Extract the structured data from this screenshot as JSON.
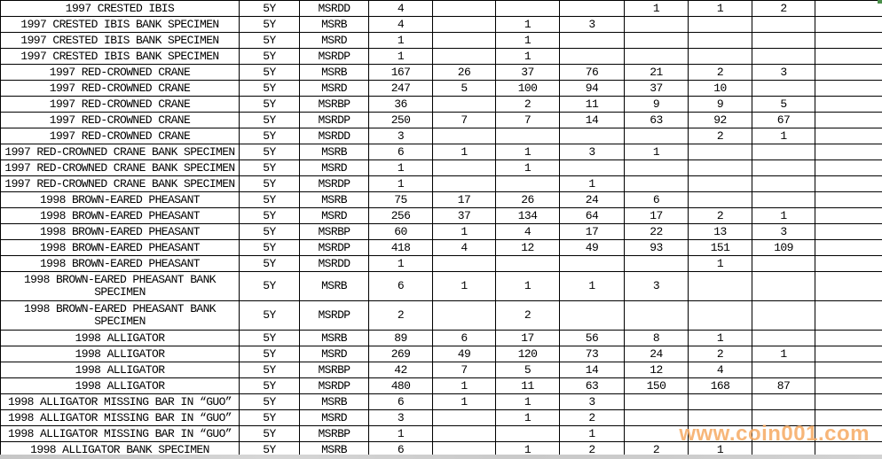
{
  "watermark": {
    "text": "www.coin001.com"
  },
  "colors": {
    "watermark": "#F6AC67",
    "grid": "#000000",
    "background": "#FFFFFF",
    "bottom_strip": "#CCCCCC",
    "corner_mark": "#4A8F4A"
  },
  "table": {
    "rows": [
      {
        "name": "1997 CRESTED IBIS",
        "denomination": "5Y",
        "grade": "MSRDD",
        "tall": false,
        "values": [
          "4",
          "",
          "",
          "",
          "1",
          "1",
          "2",
          ""
        ]
      },
      {
        "name": "1997 CRESTED IBIS BANK SPECIMEN",
        "denomination": "5Y",
        "grade": "MSRB",
        "tall": false,
        "values": [
          "4",
          "",
          "1",
          "3",
          "",
          "",
          "",
          ""
        ]
      },
      {
        "name": "1997 CRESTED IBIS BANK SPECIMEN",
        "denomination": "5Y",
        "grade": "MSRD",
        "tall": false,
        "values": [
          "1",
          "",
          "1",
          "",
          "",
          "",
          "",
          ""
        ]
      },
      {
        "name": "1997 CRESTED IBIS BANK SPECIMEN",
        "denomination": "5Y",
        "grade": "MSRDP",
        "tall": false,
        "values": [
          "1",
          "",
          "1",
          "",
          "",
          "",
          "",
          ""
        ]
      },
      {
        "name": "1997 RED-CROWNED CRANE",
        "denomination": "5Y",
        "grade": "MSRB",
        "tall": false,
        "values": [
          "167",
          "26",
          "37",
          "76",
          "21",
          "2",
          "3",
          ""
        ]
      },
      {
        "name": "1997 RED-CROWNED CRANE",
        "denomination": "5Y",
        "grade": "MSRD",
        "tall": false,
        "values": [
          "247",
          "5",
          "100",
          "94",
          "37",
          "10",
          "",
          ""
        ]
      },
      {
        "name": "1997 RED-CROWNED CRANE",
        "denomination": "5Y",
        "grade": "MSRBP",
        "tall": false,
        "values": [
          "36",
          "",
          "2",
          "11",
          "9",
          "9",
          "5",
          ""
        ]
      },
      {
        "name": "1997 RED-CROWNED CRANE",
        "denomination": "5Y",
        "grade": "MSRDP",
        "tall": false,
        "values": [
          "250",
          "7",
          "7",
          "14",
          "63",
          "92",
          "67",
          ""
        ]
      },
      {
        "name": "1997 RED-CROWNED CRANE",
        "denomination": "5Y",
        "grade": "MSRDD",
        "tall": false,
        "values": [
          "3",
          "",
          "",
          "",
          "",
          "2",
          "1",
          ""
        ]
      },
      {
        "name": "1997 RED-CROWNED CRANE BANK SPECIMEN",
        "denomination": "5Y",
        "grade": "MSRB",
        "tall": false,
        "values": [
          "6",
          "1",
          "1",
          "3",
          "1",
          "",
          "",
          ""
        ]
      },
      {
        "name": "1997 RED-CROWNED CRANE BANK SPECIMEN",
        "denomination": "5Y",
        "grade": "MSRD",
        "tall": false,
        "values": [
          "1",
          "",
          "1",
          "",
          "",
          "",
          "",
          ""
        ]
      },
      {
        "name": "1997 RED-CROWNED CRANE BANK SPECIMEN",
        "denomination": "5Y",
        "grade": "MSRDP",
        "tall": false,
        "values": [
          "1",
          "",
          "",
          "1",
          "",
          "",
          "",
          ""
        ]
      },
      {
        "name": "1998 BROWN-EARED PHEASANT",
        "denomination": "5Y",
        "grade": "MSRB",
        "tall": false,
        "values": [
          "75",
          "17",
          "26",
          "24",
          "6",
          "",
          "",
          ""
        ]
      },
      {
        "name": "1998 BROWN-EARED PHEASANT",
        "denomination": "5Y",
        "grade": "MSRD",
        "tall": false,
        "values": [
          "256",
          "37",
          "134",
          "64",
          "17",
          "2",
          "1",
          ""
        ]
      },
      {
        "name": "1998 BROWN-EARED PHEASANT",
        "denomination": "5Y",
        "grade": "MSRBP",
        "tall": false,
        "values": [
          "60",
          "1",
          "4",
          "17",
          "22",
          "13",
          "3",
          ""
        ]
      },
      {
        "name": "1998 BROWN-EARED PHEASANT",
        "denomination": "5Y",
        "grade": "MSRDP",
        "tall": false,
        "values": [
          "418",
          "4",
          "12",
          "49",
          "93",
          "151",
          "109",
          ""
        ]
      },
      {
        "name": "1998 BROWN-EARED PHEASANT",
        "denomination": "5Y",
        "grade": "MSRDD",
        "tall": false,
        "values": [
          "1",
          "",
          "",
          "",
          "",
          "1",
          "",
          ""
        ]
      },
      {
        "name": "1998 BROWN-EARED PHEASANT BANK SPECIMEN",
        "denomination": "5Y",
        "grade": "MSRB",
        "tall": true,
        "values": [
          "6",
          "1",
          "1",
          "1",
          "3",
          "",
          "",
          ""
        ]
      },
      {
        "name": "1998 BROWN-EARED PHEASANT BANK SPECIMEN",
        "denomination": "5Y",
        "grade": "MSRDP",
        "tall": true,
        "values": [
          "2",
          "",
          "2",
          "",
          "",
          "",
          "",
          ""
        ]
      },
      {
        "name": "1998 ALLIGATOR",
        "denomination": "5Y",
        "grade": "MSRB",
        "tall": false,
        "values": [
          "89",
          "6",
          "17",
          "56",
          "8",
          "1",
          "",
          ""
        ]
      },
      {
        "name": "1998 ALLIGATOR",
        "denomination": "5Y",
        "grade": "MSRD",
        "tall": false,
        "values": [
          "269",
          "49",
          "120",
          "73",
          "24",
          "2",
          "1",
          ""
        ]
      },
      {
        "name": "1998 ALLIGATOR",
        "denomination": "5Y",
        "grade": "MSRBP",
        "tall": false,
        "values": [
          "42",
          "7",
          "5",
          "14",
          "12",
          "4",
          "",
          ""
        ]
      },
      {
        "name": "1998 ALLIGATOR",
        "denomination": "5Y",
        "grade": "MSRDP",
        "tall": false,
        "values": [
          "480",
          "1",
          "11",
          "63",
          "150",
          "168",
          "87",
          ""
        ]
      },
      {
        "name": "1998 ALLIGATOR MISSING BAR IN “GUO”",
        "denomination": "5Y",
        "grade": "MSRB",
        "tall": false,
        "values": [
          "6",
          "1",
          "1",
          "3",
          "",
          "",
          "",
          ""
        ]
      },
      {
        "name": "1998 ALLIGATOR MISSING BAR IN “GUO”",
        "denomination": "5Y",
        "grade": "MSRD",
        "tall": false,
        "values": [
          "3",
          "",
          "1",
          "2",
          "",
          "",
          "",
          ""
        ]
      },
      {
        "name": "1998 ALLIGATOR MISSING BAR IN “GUO”",
        "denomination": "5Y",
        "grade": "MSRBP",
        "tall": false,
        "values": [
          "1",
          "",
          "",
          "1",
          "",
          "",
          "",
          ""
        ]
      },
      {
        "name": "1998 ALLIGATOR BANK SPECIMEN",
        "denomination": "5Y",
        "grade": "MSRB",
        "tall": false,
        "values": [
          "6",
          "",
          "1",
          "2",
          "2",
          "1",
          "",
          ""
        ]
      }
    ]
  }
}
